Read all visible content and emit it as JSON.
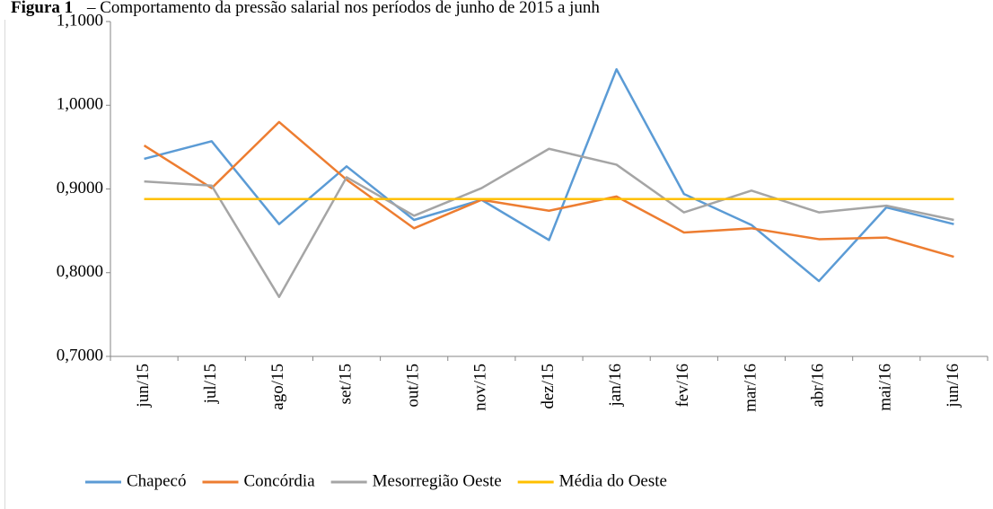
{
  "chart_data": {
    "type": "line",
    "figure_label": "Figura 1",
    "title": "– Comportamento da pressão salarial nos períodos de junho de 2015 a junh",
    "categories": [
      "jun/15",
      "jul/15",
      "ago/15",
      "set/15",
      "out/15",
      "nov/15",
      "dez/15",
      "jan/16",
      "fev/16",
      "mar/16",
      "abr/16",
      "mai/16",
      "jun/16"
    ],
    "series": [
      {
        "name": "Chapecó",
        "color": "#5b9bd5",
        "values": [
          0.936,
          0.957,
          0.858,
          0.927,
          0.863,
          0.887,
          0.839,
          1.043,
          0.894,
          0.857,
          0.79,
          0.878,
          0.858
        ]
      },
      {
        "name": "Concórdia",
        "color": "#ed7d31",
        "values": [
          0.952,
          0.901,
          0.98,
          0.911,
          0.853,
          0.887,
          0.874,
          0.891,
          0.848,
          0.853,
          0.84,
          0.842,
          0.819
        ]
      },
      {
        "name": "Mesorregião Oeste",
        "color": "#a5a5a5",
        "values": [
          0.909,
          0.904,
          0.771,
          0.914,
          0.868,
          0.901,
          0.948,
          0.929,
          0.872,
          0.898,
          0.872,
          0.88,
          0.863
        ]
      },
      {
        "name": "Média do Oeste",
        "color": "#ffc000",
        "values": [
          0.888,
          0.888,
          0.888,
          0.888,
          0.888,
          0.888,
          0.888,
          0.888,
          0.888,
          0.888,
          0.888,
          0.888,
          0.888
        ]
      }
    ],
    "ylim": [
      0.7,
      1.1
    ],
    "yticks": [
      {
        "value": 0.7,
        "label": "0,7000"
      },
      {
        "value": 0.8,
        "label": "0,8000"
      },
      {
        "value": 0.9,
        "label": "0,9000"
      },
      {
        "value": 1.0,
        "label": "1,0000"
      },
      {
        "value": 1.1,
        "label": "1,1000"
      }
    ],
    "legend": "bottom"
  }
}
